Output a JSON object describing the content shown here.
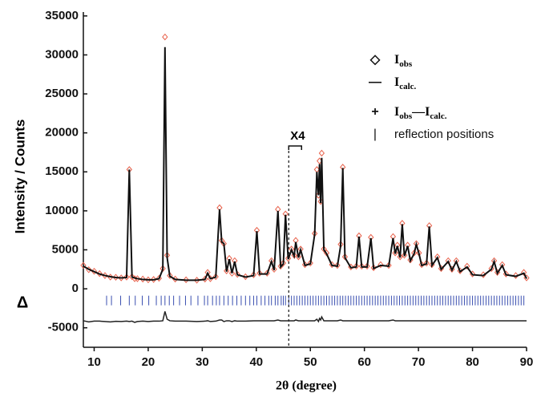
{
  "chart_data": {
    "type": "rietveld",
    "ylabel": "Intensity / Counts",
    "xlabel": "2θ (degree)",
    "diff_label": "Δ",
    "annotation": {
      "text": "X4",
      "x": 46
    },
    "xlim": [
      8,
      90
    ],
    "ylim": [
      -7500,
      35500
    ],
    "xticks": [
      10,
      20,
      30,
      40,
      50,
      60,
      70,
      80,
      90
    ],
    "yticks": [
      -5000,
      0,
      5000,
      10000,
      15000,
      20000,
      25000,
      30000,
      35000
    ],
    "x": [
      8,
      9,
      10,
      11,
      12,
      13,
      14,
      15,
      16,
      16.5,
      17,
      17.5,
      18,
      19,
      20,
      21,
      22,
      22.7,
      23.1,
      23.5,
      24,
      25,
      27,
      29,
      30.5,
      31,
      31.5,
      32.5,
      33.2,
      33.6,
      34,
      34.5,
      35,
      35.5,
      36,
      36.5,
      38,
      39.5,
      40.1,
      40.6,
      42,
      42.8,
      43.3,
      44,
      44.5,
      45,
      45.4,
      45.9,
      46.5,
      47,
      47.3,
      47.8,
      48.2,
      49,
      50,
      50.8,
      51.2,
      51.5,
      51.7,
      51.9,
      52.1,
      52.5,
      53,
      54,
      55,
      55.6,
      56,
      56.4,
      57.5,
      58.5,
      59,
      59.5,
      60.5,
      61.2,
      61.7,
      63,
      64.5,
      65.3,
      65.7,
      66.1,
      66.6,
      67,
      67.4,
      68,
      68.5,
      69.2,
      69.6,
      70.1,
      70.6,
      71.5,
      72,
      72.5,
      73.5,
      74.2,
      75.5,
      76.2,
      77,
      77.7,
      79,
      80,
      82,
      83.5,
      84,
      84.6,
      85.5,
      86.2,
      88,
      89.5,
      90
    ],
    "series": [
      {
        "name": [
          "I",
          "obs"
        ],
        "symbol": "◇",
        "color": "#e8604a",
        "marker": "diamond",
        "values": [
          3000,
          2450,
          2250,
          1950,
          1700,
          1500,
          1480,
          1400,
          1500,
          15300,
          1550,
          1300,
          1300,
          1250,
          1150,
          1200,
          1350,
          2600,
          32300,
          4300,
          1700,
          1250,
          1150,
          1100,
          1250,
          2100,
          1300,
          1550,
          10400,
          6200,
          5800,
          2300,
          3900,
          2000,
          3600,
          1850,
          1550,
          1800,
          7500,
          2000,
          2000,
          3600,
          2500,
          10200,
          2900,
          3300,
          9600,
          3900,
          5100,
          4300,
          6200,
          4100,
          5100,
          3100,
          3300,
          7100,
          15300,
          12000,
          16400,
          11200,
          17400,
          5100,
          4600,
          3100,
          3000,
          5700,
          15600,
          4100,
          2800,
          2900,
          6800,
          2900,
          2900,
          6600,
          2700,
          3100,
          3000,
          6700,
          4600,
          5600,
          4100,
          8400,
          4300,
          5600,
          3700,
          4600,
          5800,
          4600,
          3100,
          3300,
          8100,
          3100,
          4100,
          2600,
          3600,
          2500,
          3600,
          2300,
          2900,
          1900,
          1800,
          2600,
          3600,
          2100,
          3100,
          1900,
          1700,
          2100,
          1400
        ]
      },
      {
        "name": [
          "I",
          "calc."
        ],
        "symbol": "—",
        "color": "#111111",
        "marker": "line",
        "values": [
          2900,
          2500,
          2200,
          1900,
          1700,
          1550,
          1450,
          1400,
          1450,
          15300,
          1500,
          1400,
          1300,
          1200,
          1150,
          1150,
          1300,
          2500,
          31000,
          4000,
          1600,
          1200,
          1100,
          1100,
          1200,
          2000,
          1300,
          1500,
          10200,
          6000,
          5800,
          2200,
          3800,
          2000,
          3500,
          1800,
          1500,
          1700,
          7400,
          1900,
          1900,
          3500,
          2400,
          10000,
          2800,
          3200,
          9500,
          3800,
          5000,
          4200,
          6000,
          4000,
          5000,
          3000,
          3200,
          7000,
          15000,
          12000,
          16000,
          11000,
          16800,
          5000,
          4500,
          3000,
          2900,
          5500,
          15500,
          4000,
          2700,
          2800,
          6700,
          2800,
          2800,
          6500,
          2600,
          3000,
          2900,
          6500,
          4500,
          5500,
          4000,
          8300,
          4200,
          5500,
          3600,
          4500,
          5700,
          4500,
          3000,
          3200,
          8000,
          3000,
          4000,
          2500,
          3500,
          2400,
          3500,
          2200,
          2800,
          1800,
          1700,
          2500,
          3500,
          2000,
          3000,
          1800,
          1600,
          2000,
          1300
        ]
      },
      {
        "name": [
          "I",
          "obs",
          "—",
          "I",
          "calc."
        ],
        "symbol": "+",
        "color": "#222222",
        "marker": "diff",
        "values": [
          -4100,
          -4250,
          -4150,
          -4150,
          -4200,
          -4250,
          -4170,
          -4200,
          -4150,
          -4200,
          -4150,
          -4300,
          -4200,
          -4150,
          -4200,
          -4150,
          -4150,
          -4100,
          -2900,
          -3900,
          -4100,
          -4150,
          -4150,
          -4200,
          -4150,
          -4100,
          -4200,
          -4150,
          -4000,
          -4000,
          -4200,
          -4100,
          -4100,
          -4200,
          -4100,
          -4150,
          -4150,
          -4100,
          -4100,
          -4100,
          -4100,
          -4100,
          -4100,
          -4000,
          -4100,
          -4100,
          -4100,
          -4100,
          -4100,
          -4100,
          -4000,
          -4100,
          -4100,
          -4100,
          -4100,
          -4100,
          -3900,
          -4200,
          -3800,
          -4000,
          -3600,
          -4100,
          -4100,
          -4100,
          -4100,
          -4000,
          -4100,
          -4100,
          -4100,
          -4100,
          -4100,
          -4100,
          -4100,
          -4100,
          -4100,
          -4100,
          -4100,
          -4000,
          -4100,
          -4100,
          -4100,
          -4100,
          -4100,
          -4100,
          -4100,
          -4100,
          -4100,
          -4100,
          -4100,
          -4100,
          -4100,
          -4100,
          -4100,
          -4100,
          -4100,
          -4100,
          -4100,
          -4100,
          -4100,
          -4100,
          -4100,
          -4100,
          -4100,
          -4100,
          -4100,
          -4100,
          -4100,
          -4100,
          -4100
        ]
      }
    ],
    "reflections": {
      "name": "reflection positions",
      "symbol": "|",
      "color": "#3a4fb0",
      "level": -1500,
      "x": [
        12.3,
        13.2,
        14.9,
        16.5,
        17.6,
        18.9,
        20.1,
        21.5,
        22.4,
        23.1,
        23.9,
        24.7,
        25.8,
        26.9,
        27.9,
        29.2,
        30.4,
        31,
        31.9,
        32.6,
        33.2,
        34,
        34.8,
        35.6,
        36.4,
        37.2,
        38,
        38.8,
        39.5,
        40.1,
        40.9,
        41.6,
        42.3,
        42.8,
        43.5,
        44,
        44.6,
        45,
        45.4,
        46,
        46.5,
        47,
        47.5,
        48,
        48.5,
        49,
        49.5,
        50,
        50.5,
        51,
        51.5,
        52,
        52.5,
        53,
        53.5,
        54,
        54.5,
        55,
        55.5,
        56,
        56.5,
        57,
        57.5,
        58,
        58.5,
        59,
        59.5,
        60,
        60.5,
        61,
        61.5,
        62,
        62.5,
        63,
        63.5,
        64,
        64.5,
        65,
        65.5,
        66,
        66.5,
        67,
        67.5,
        68,
        68.5,
        69,
        69.5,
        70,
        70.5,
        71,
        71.5,
        72,
        72.5,
        73,
        73.5,
        74,
        74.5,
        75,
        75.5,
        76,
        76.5,
        77,
        77.5,
        78,
        78.5,
        79,
        79.5,
        80,
        80.5,
        81,
        81.5,
        82,
        82.5,
        83,
        83.5,
        84,
        84.5,
        85,
        85.5,
        86,
        86.5,
        87,
        87.5,
        88,
        88.5,
        89,
        89.5
      ]
    }
  }
}
